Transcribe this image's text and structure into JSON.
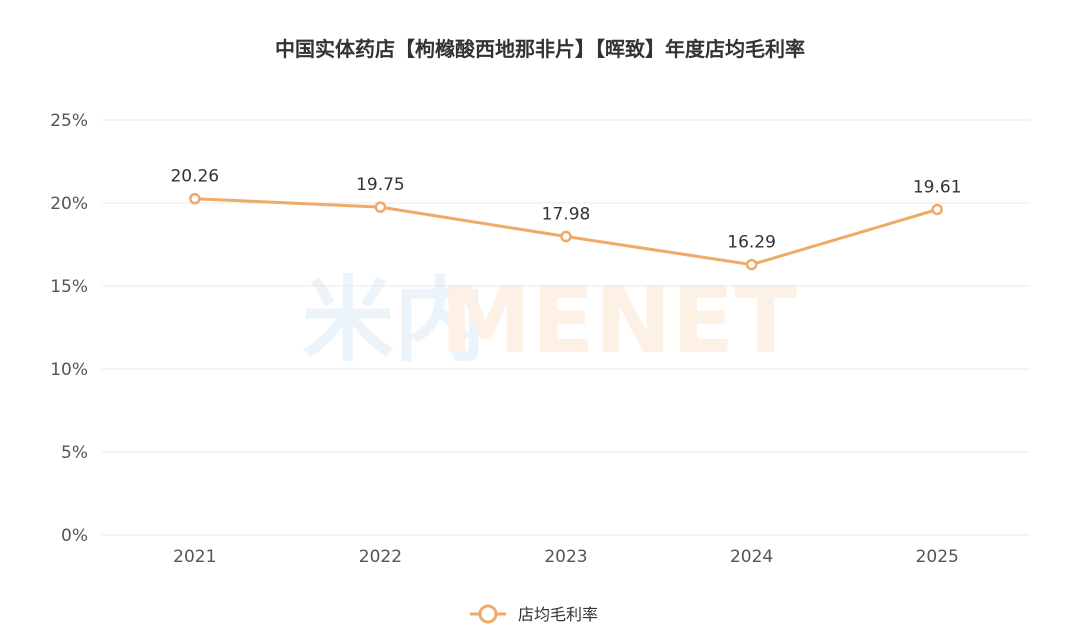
{
  "chart_data": {
    "type": "line",
    "title": "中国实体药店【枸橼酸西地那非片】【晖致】年度店均毛利率",
    "x": [
      "2021",
      "2022",
      "2023",
      "2024",
      "2025"
    ],
    "series": [
      {
        "name": "店均毛利率",
        "values": [
          20.26,
          19.75,
          17.98,
          16.29,
          19.61
        ],
        "value_labels": [
          "20.26",
          "19.75",
          "17.98",
          "16.29",
          "19.61"
        ]
      }
    ],
    "y_ticks": [
      "0%",
      "5%",
      "10%",
      "15%",
      "20%",
      "25%"
    ],
    "ylim": [
      0,
      25
    ],
    "grid": true,
    "legend": "bottom-center",
    "colors": {
      "line": "#EFAA68",
      "grid": "#E8E8E8",
      "watermark_cn": "#EAF4FA",
      "watermark_en": "#FDF0E4"
    }
  },
  "watermark": {
    "cn": "米内",
    "en": "MENET"
  }
}
